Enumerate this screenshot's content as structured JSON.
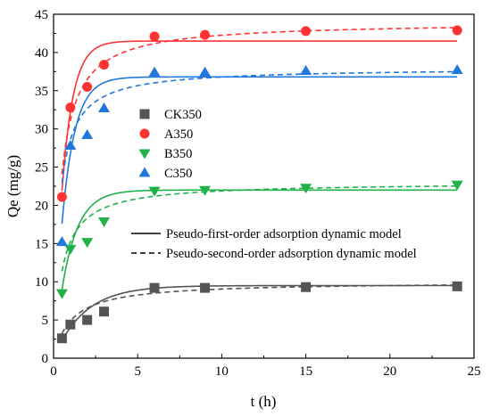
{
  "chart_data": {
    "type": "scatter",
    "xlabel": "t (h)",
    "ylabel": "Qe (mg/g)",
    "xlim": [
      0,
      25
    ],
    "ylim": [
      0,
      45
    ],
    "xticks": [
      0,
      5,
      10,
      15,
      20,
      25
    ],
    "yticks": [
      0,
      5,
      10,
      15,
      20,
      25,
      30,
      35,
      40,
      45
    ],
    "grid": false,
    "series": [
      {
        "name": "CK350",
        "color": "#555555",
        "marker": "square",
        "x": [
          0.5,
          1,
          2,
          3,
          6,
          9,
          15,
          24
        ],
        "y": [
          2.6,
          4.4,
          5.0,
          6.1,
          9.2,
          9.2,
          9.3,
          9.4
        ],
        "pfo_qe": 9.5,
        "pfo_k": 0.55,
        "pso_qe": 10.0,
        "pso_k": 0.095
      },
      {
        "name": "A350",
        "color": "#ff3333",
        "marker": "circle",
        "x": [
          0.5,
          1,
          2,
          3,
          6,
          9,
          15,
          24
        ],
        "y": [
          21.1,
          32.8,
          35.5,
          38.4,
          42.1,
          42.3,
          42.8,
          42.9
        ],
        "pfo_qe": 41.5,
        "pfo_k": 1.5,
        "pso_qe": 44.0,
        "pso_k": 0.055
      },
      {
        "name": "B350",
        "color": "#22b04a",
        "marker": "triangle-down",
        "x": [
          0.5,
          1,
          2,
          3,
          6,
          9,
          15,
          24
        ],
        "y": [
          8.5,
          14.3,
          15.2,
          17.9,
          21.9,
          22.0,
          22.3,
          22.7
        ],
        "pfo_qe": 22.0,
        "pfo_k": 1.05,
        "pso_qe": 23.0,
        "pso_k": 0.085
      },
      {
        "name": "C350",
        "color": "#2277dd",
        "marker": "triangle-up",
        "x": [
          0.5,
          1,
          2,
          3,
          6,
          9,
          15,
          24
        ],
        "y": [
          15.2,
          27.8,
          29.2,
          32.7,
          37.4,
          37.4,
          37.6,
          37.7
        ],
        "pfo_qe": 36.8,
        "pfo_k": 1.3,
        "pso_qe": 38.0,
        "pso_k": 0.08
      }
    ],
    "model_legend": [
      {
        "label": "Pseudo-first-order adsorption dynamic model",
        "style": "solid"
      },
      {
        "label": "Pseudo-second-order adsorption dynamic model",
        "style": "dashed"
      }
    ]
  }
}
